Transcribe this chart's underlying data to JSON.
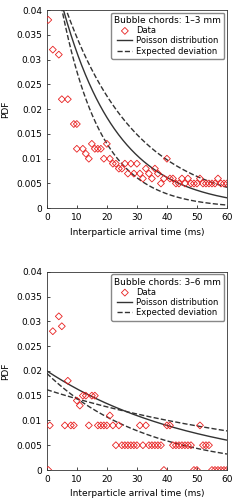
{
  "subplot1": {
    "title": "Bubble chords: 1–3 mm",
    "data_x": [
      0.5,
      2,
      4,
      5,
      7,
      9,
      10,
      10,
      12,
      13,
      14,
      15,
      16,
      17,
      18,
      19,
      20,
      21,
      22,
      23,
      24,
      25,
      26,
      27,
      28,
      29,
      30,
      31,
      32,
      33,
      34,
      35,
      36,
      37,
      38,
      39,
      40,
      41,
      42,
      43,
      44,
      45,
      46,
      47,
      48,
      49,
      50,
      51,
      52,
      53,
      54,
      55,
      56,
      57,
      58,
      59,
      60
    ],
    "data_y": [
      0.038,
      0.032,
      0.031,
      0.022,
      0.022,
      0.017,
      0.017,
      0.012,
      0.012,
      0.011,
      0.01,
      0.013,
      0.012,
      0.012,
      0.012,
      0.01,
      0.013,
      0.01,
      0.009,
      0.009,
      0.008,
      0.008,
      0.009,
      0.007,
      0.009,
      0.007,
      0.009,
      0.007,
      0.006,
      0.008,
      0.007,
      0.006,
      0.008,
      0.007,
      0.005,
      0.006,
      0.01,
      0.006,
      0.006,
      0.005,
      0.005,
      0.006,
      0.005,
      0.006,
      0.005,
      0.005,
      0.005,
      0.006,
      0.005,
      0.005,
      0.005,
      0.005,
      0.005,
      0.006,
      0.005,
      0.005,
      0.005
    ],
    "poisson_lambda": 0.054,
    "upper_lambda": 0.042,
    "upper_scale": 1.25,
    "lower_lambda": 0.075,
    "lower_scale": 0.78
  },
  "subplot2": {
    "title": "Bubble chords: 3–6 mm",
    "data_x": [
      0.5,
      1,
      2,
      4,
      5,
      6,
      7,
      8,
      9,
      10,
      11,
      12,
      13,
      14,
      15,
      16,
      17,
      18,
      19,
      20,
      21,
      22,
      23,
      24,
      25,
      26,
      27,
      28,
      29,
      30,
      31,
      32,
      33,
      34,
      35,
      36,
      37,
      38,
      39,
      40,
      41,
      42,
      43,
      44,
      45,
      46,
      47,
      48,
      49,
      50,
      51,
      52,
      53,
      54,
      55,
      56,
      57,
      58,
      59,
      60
    ],
    "data_y": [
      0.0,
      0.009,
      0.028,
      0.031,
      0.029,
      0.009,
      0.018,
      0.009,
      0.009,
      0.014,
      0.013,
      0.015,
      0.015,
      0.009,
      0.015,
      0.015,
      0.009,
      0.009,
      0.009,
      0.009,
      0.011,
      0.009,
      0.005,
      0.009,
      0.005,
      0.005,
      0.005,
      0.005,
      0.005,
      0.005,
      0.009,
      0.005,
      0.009,
      0.005,
      0.005,
      0.005,
      0.005,
      0.005,
      0.0,
      0.009,
      0.009,
      0.005,
      0.005,
      0.005,
      0.005,
      0.005,
      0.005,
      0.005,
      0.0,
      0.0,
      0.009,
      0.005,
      0.005,
      0.005,
      0.0,
      0.0,
      0.0,
      0.0,
      0.0,
      0.0
    ],
    "poisson_lambda": 0.02,
    "upper_lambda": 0.012,
    "upper_scale": 1.35,
    "lower_lambda": 0.03,
    "lower_scale": 0.65
  },
  "legend_labels": [
    "Data",
    "Poisson distribution",
    "Expected deviation"
  ],
  "xlabel": "Interparticle arrival time (ms)",
  "ylabel": "PDF",
  "ylim": [
    0,
    0.04
  ],
  "xlim": [
    0,
    60
  ],
  "yticks": [
    0,
    0.005,
    0.01,
    0.015,
    0.02,
    0.025,
    0.03,
    0.035,
    0.04
  ],
  "xticks": [
    0,
    10,
    20,
    30,
    40,
    50,
    60
  ],
  "data_color": "#e82020",
  "data_marker": "D",
  "data_markersize": 3.5,
  "poisson_color": "#333333",
  "poisson_lw": 1.0,
  "dev_color": "#333333",
  "dev_lw": 1.0,
  "font_size": 6.5,
  "title_font_size": 6.5
}
